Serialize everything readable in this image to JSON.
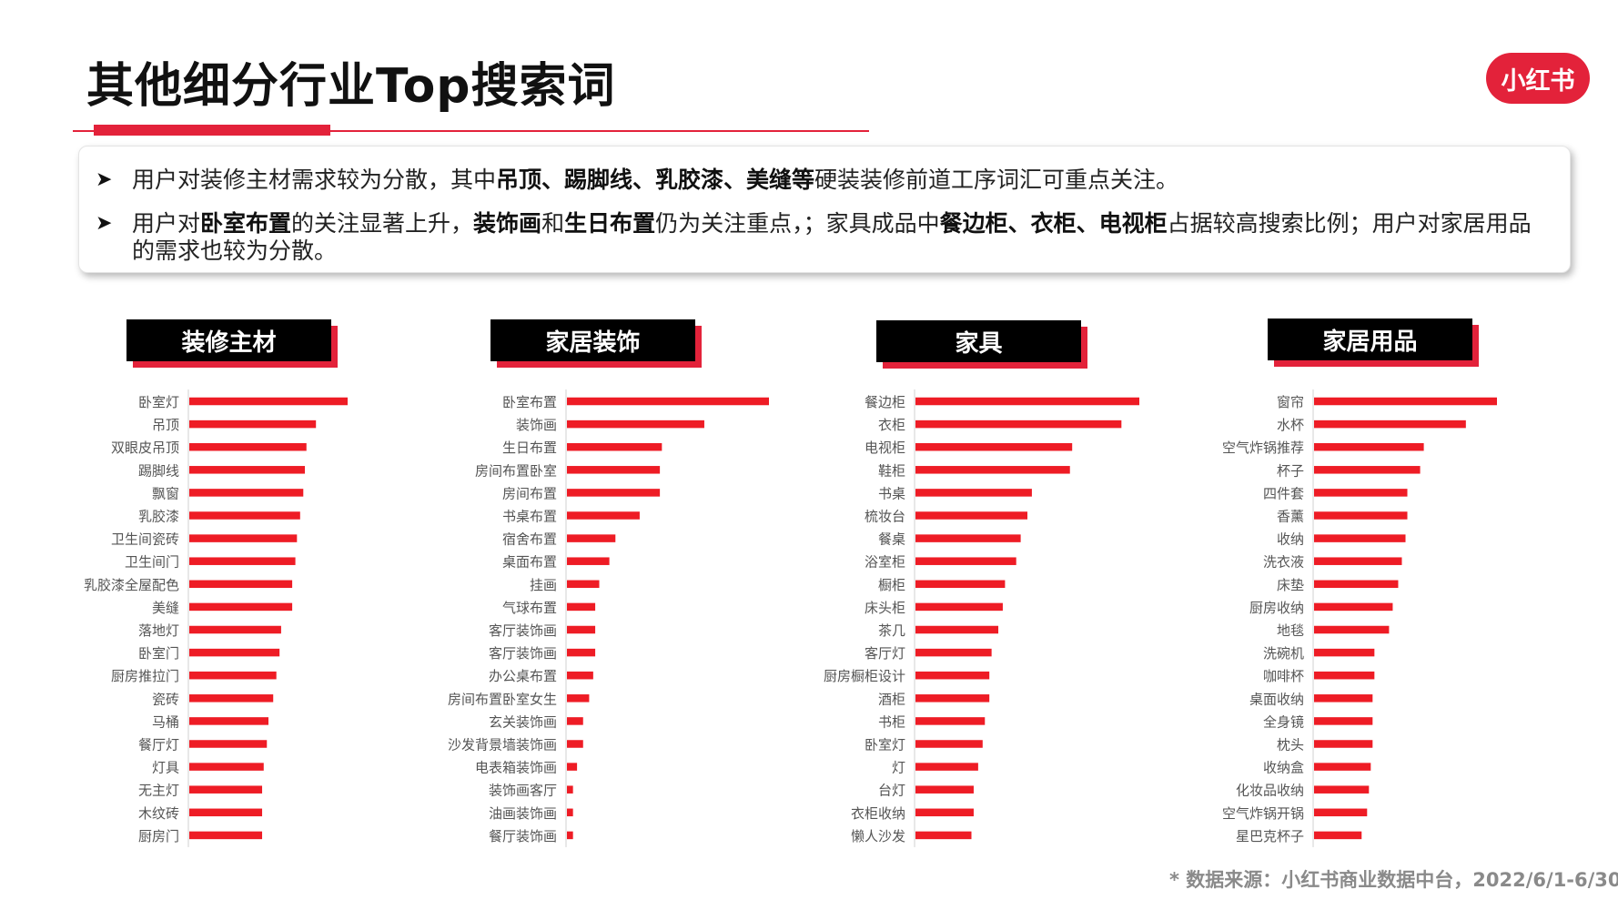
{
  "title": "其他细分行业Top搜索词",
  "logo": "小红书",
  "summary": {
    "bullet1": [
      "用户对装修主材需求较为分散，其中",
      "吊顶、踢脚线、乳胶漆、美缝等",
      "硬装装修前道工序词汇可重点关注。"
    ],
    "bullet2": [
      "用户对",
      "卧室布置",
      "的关注显著上升，",
      "装饰画",
      "和",
      "生日布置",
      "仍为关注重点，；家具成品中",
      "餐边柜、衣柜、电视柜",
      "占据较高搜索比例；用户对家居用品的需求也较为分散。"
    ]
  },
  "chart_data": [
    {
      "type": "bar",
      "title": "装修主材",
      "categories": [
        "卧室灯",
        "吊顶",
        "双眼皮吊顶",
        "踢脚线",
        "飘窗",
        "乳胶漆",
        "卫生间瓷砖",
        "卫生间门",
        "乳胶漆全屋配色",
        "美缝",
        "落地灯",
        "卧室门",
        "厨房推拉门",
        "瓷砖",
        "马桶",
        "餐厅灯",
        "灯具",
        "无主灯",
        "木纹砖",
        "厨房门"
      ],
      "values": [
        100,
        80,
        74,
        73,
        72,
        70,
        68,
        67,
        65,
        65,
        58,
        57,
        55,
        53,
        50,
        49,
        47,
        46,
        46,
        46
      ],
      "xlim": [
        0,
        100
      ]
    },
    {
      "type": "bar",
      "title": "家居装饰",
      "categories": [
        "卧室布置",
        "装饰画",
        "生日布置",
        "房间布置卧室",
        "房间布置",
        "书桌布置",
        "宿舍布置",
        "桌面布置",
        "挂画",
        "气球布置",
        "客厅装饰画",
        "客厅装饰画",
        "办公桌布置",
        "房间布置卧室女生",
        "玄关装饰画",
        "沙发背景墙装饰画",
        "电表箱装饰画",
        "装饰画客厅",
        "油画装饰画",
        "餐厅装饰画"
      ],
      "values": [
        100,
        68,
        47,
        46,
        46,
        36,
        24,
        21,
        16,
        14,
        14,
        14,
        13,
        11,
        8,
        8,
        5,
        3,
        3,
        3
      ],
      "xlim": [
        0,
        100
      ]
    },
    {
      "type": "bar",
      "title": "家具",
      "categories": [
        "餐边柜",
        "衣柜",
        "电视柜",
        "鞋柜",
        "书桌",
        "梳妆台",
        "餐桌",
        "浴室柜",
        "橱柜",
        "床头柜",
        "茶几",
        "客厅灯",
        "厨房橱柜设计",
        "酒柜",
        "书柜",
        "卧室灯",
        "灯",
        "台灯",
        "衣柜收纳",
        "懒人沙发"
      ],
      "values": [
        100,
        92,
        70,
        69,
        52,
        50,
        47,
        45,
        40,
        39,
        37,
        34,
        33,
        33,
        31,
        30,
        28,
        26,
        26,
        25
      ],
      "xlim": [
        0,
        100
      ]
    },
    {
      "type": "bar",
      "title": "家居用品",
      "categories": [
        "窗帘",
        "水杯",
        "空气炸锅推荐",
        "杯子",
        "四件套",
        "香薰",
        "收纳",
        "洗衣液",
        "床垫",
        "厨房收纳",
        "地毯",
        "洗碗机",
        "咖啡杯",
        "桌面收纳",
        "全身镜",
        "枕头",
        "收纳盒",
        "化妆品收纳",
        "空气炸锅开锅",
        "星巴克杯子"
      ],
      "values": [
        100,
        83,
        60,
        58,
        51,
        51,
        50,
        48,
        46,
        43,
        41,
        33,
        33,
        32,
        32,
        32,
        31,
        30,
        29,
        26
      ],
      "xlim": [
        0,
        100
      ]
    }
  ],
  "source": "* 数据来源：小红书商业数据中台，2022/6/1-6/30",
  "colors": {
    "accent": "#e3223a",
    "bar": "#ee1c25",
    "header_bg": "#000000"
  }
}
